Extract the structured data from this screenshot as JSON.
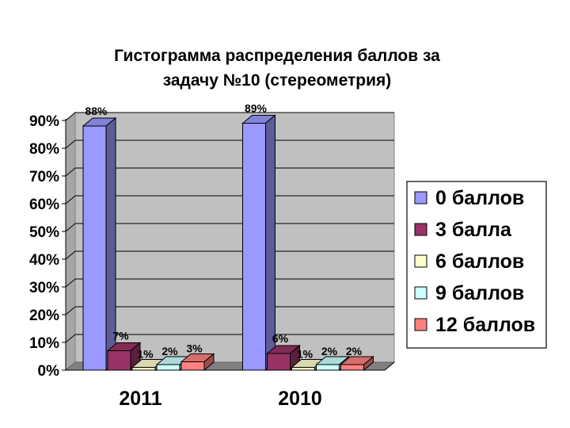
{
  "chart_data": {
    "type": "bar",
    "title_lines": [
      "Гистограмма распределения баллов за",
      "задачу №10 (стереометрия)"
    ],
    "categories": [
      "2011",
      "2010"
    ],
    "series": [
      {
        "name": "0 баллов",
        "values": [
          88,
          89
        ],
        "labels": [
          "88%",
          "89%"
        ],
        "color": "#9999ff"
      },
      {
        "name": "3 балла",
        "values": [
          7,
          6
        ],
        "labels": [
          "7%",
          "6%"
        ],
        "color": "#993366"
      },
      {
        "name": "6 баллов",
        "values": [
          1,
          1
        ],
        "labels": [
          "1%",
          "1%"
        ],
        "color": "#ffffcc"
      },
      {
        "name": "9 баллов",
        "values": [
          2,
          2
        ],
        "labels": [
          "2%",
          "2%"
        ],
        "color": "#ccffff"
      },
      {
        "name": "12 баллов",
        "values": [
          3,
          2
        ],
        "labels": [
          "3%",
          "2%"
        ],
        "color": "#ff8080"
      }
    ],
    "y_ticks": [
      "0%",
      "10%",
      "20%",
      "30%",
      "40%",
      "50%",
      "60%",
      "70%",
      "80%",
      "90%"
    ],
    "ylim": [
      0,
      90
    ],
    "grid": true,
    "legend_position": "right",
    "plot_background": "#c0c0c0"
  }
}
